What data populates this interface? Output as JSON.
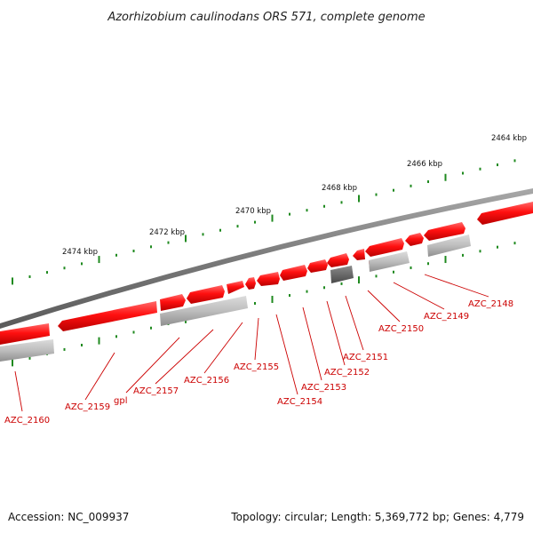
{
  "title": "Azorhizobium caulinodans ORS 571, complete genome",
  "footer": {
    "accession": "Accession: NC_009937",
    "topology": "Topology: circular; Length: 5,369,772 bp; Genes: 4,779"
  },
  "ticks": [
    "2474 kbp",
    "2472 kbp",
    "2470 kbp",
    "2468 kbp",
    "2466 kbp",
    "2464 kbp"
  ],
  "genes": [
    "AZC_2160",
    "AZC_2159",
    "gpl",
    "AZC_2157",
    "AZC_2156",
    "AZC_2155",
    "AZC_2154",
    "AZC_2153",
    "AZC_2152",
    "AZC_2151",
    "AZC_2150",
    "AZC_2149",
    "AZC_2148"
  ],
  "colors": {
    "backbone": "#808080",
    "gene_red": "#ee1111",
    "gene_grey": "#b5b5b5",
    "gene_dark": "#666666",
    "dots": "#1f8a1f",
    "label": "#cc0000"
  }
}
